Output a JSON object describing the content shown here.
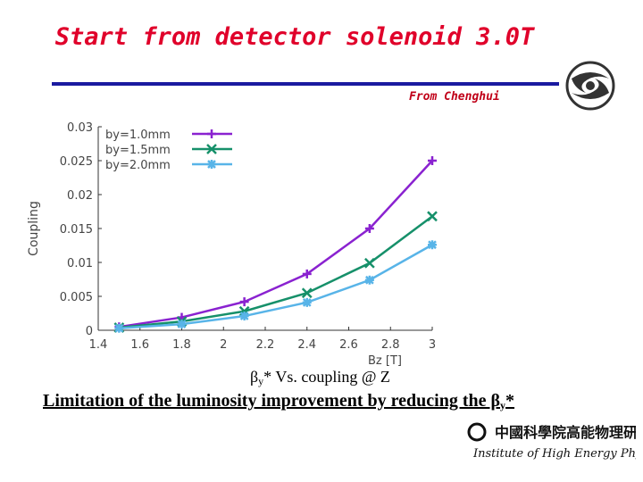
{
  "slide": {
    "title": "Start from detector solenoid 3.0T",
    "credit": "From Chenghui",
    "caption_beta": "β",
    "caption_sub": "y",
    "caption_rest": "* Vs. coupling  @ Z",
    "limitation_text": "Limitation of the luminosity improvement by reducing the β",
    "limitation_sub": "y",
    "limitation_end": "*",
    "institute_en": "Institute of High Energy Physics",
    "institute_cn": "中國科學院高能物理研究所"
  },
  "colors": {
    "title": "#e0002a",
    "rule": "#1a1aa0",
    "series1": "#8a22d0",
    "series2": "#16906a",
    "series3": "#58b4e8"
  },
  "chart_data": {
    "type": "line",
    "title": "",
    "xlabel": "Bz [T]",
    "ylabel": "Coupling",
    "xlim": [
      1.4,
      3.0
    ],
    "ylim": [
      0,
      0.03
    ],
    "xticks": [
      "1.4",
      "1.6",
      "1.8",
      "2",
      "2.2",
      "2.4",
      "2.6",
      "2.8",
      "3"
    ],
    "yticks": [
      "0",
      "0.005",
      "0.01",
      "0.015",
      "0.02",
      "0.025",
      "0.03"
    ],
    "legend_position": "top-left",
    "x": [
      1.5,
      1.8,
      2.1,
      2.4,
      2.7,
      3.0
    ],
    "series": [
      {
        "name": "by=1.0mm",
        "marker": "plus",
        "values": [
          0.0005,
          0.0019,
          0.0042,
          0.0083,
          0.015,
          0.025
        ]
      },
      {
        "name": "by=1.5mm",
        "marker": "x",
        "values": [
          0.0004,
          0.0013,
          0.0028,
          0.0055,
          0.0099,
          0.0168
        ]
      },
      {
        "name": "by=2.0mm",
        "marker": "star",
        "values": [
          0.0003,
          0.0009,
          0.0021,
          0.0041,
          0.0074,
          0.0126
        ]
      }
    ]
  }
}
